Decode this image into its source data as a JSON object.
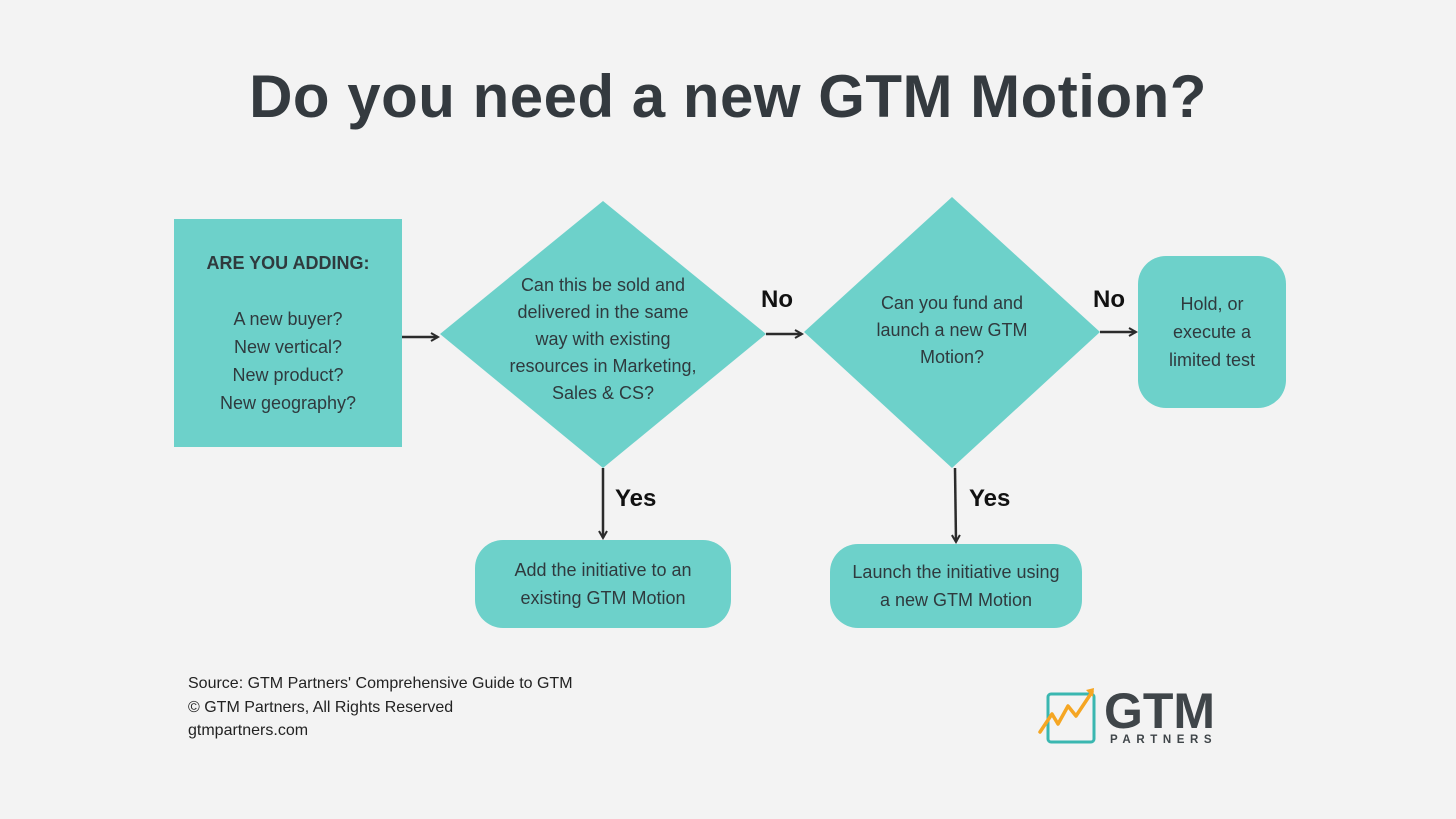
{
  "title": "Do you need a new GTM Motion?",
  "start_box": {
    "heading": "ARE YOU ADDING:",
    "lines": [
      "A new buyer?",
      "New vertical?",
      "New product?",
      "New geography?"
    ]
  },
  "decision1": {
    "lines": [
      "Can this be sold and",
      "delivered in the same",
      "way with existing",
      "resources in Marketing,",
      "Sales & CS?"
    ]
  },
  "decision2": {
    "lines": [
      "Can you fund and",
      "launch a new GTM",
      "Motion?"
    ]
  },
  "outcome_hold": {
    "lines": [
      "Hold, or",
      "execute a",
      "limited test"
    ]
  },
  "outcome_add": {
    "lines": [
      "Add the initiative to an",
      "existing GTM Motion"
    ]
  },
  "outcome_launch": {
    "lines": [
      "Launch the initiative using",
      "a new GTM Motion"
    ]
  },
  "labels": {
    "no1": "No",
    "no2": "No",
    "yes1": "Yes",
    "yes2": "Yes"
  },
  "footer": {
    "source": "Source: GTM Partners' Comprehensive Guide to GTM",
    "copyright": "© GTM Partners, All Rights Reserved",
    "website": "gtmpartners.com"
  },
  "logo": {
    "word": "GTM",
    "sub": "PARTNERS"
  },
  "colors": {
    "background": "#f3f3f3",
    "accent": "#6dd1ca",
    "title": "#343a3f",
    "arrow": "#2b2b2b",
    "logo_orange": "#f5a623",
    "logo_teal": "#3ab7b0"
  }
}
